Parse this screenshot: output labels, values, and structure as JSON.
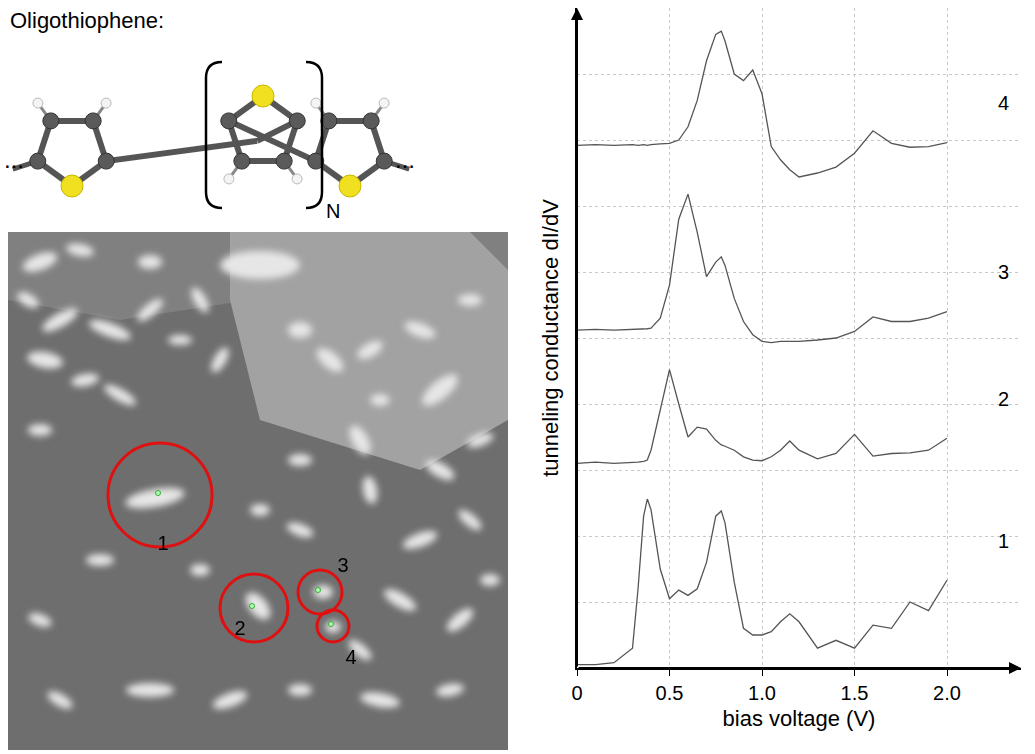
{
  "diagram": {
    "title": "Oligothiophene:",
    "repeat_unit_label": "N",
    "continuation": "..."
  },
  "stm_image": {
    "marked_molecules": [
      "1",
      "2",
      "3",
      "4"
    ]
  },
  "chart_data": {
    "type": "line",
    "x_label": "bias voltage (V)",
    "y_label": "tunneling conductance dI/dV",
    "xlim": [
      0,
      2.4
    ],
    "ylim": [
      0,
      10
    ],
    "xticks": [
      0,
      0.5,
      {
        "value": 1,
        "label": "1.0"
      },
      1.5,
      {
        "value": 2,
        "label": "2.0"
      }
    ],
    "yticks": [
      0,
      1,
      2,
      3,
      4,
      5,
      6,
      7,
      8,
      9,
      10
    ],
    "grid": true,
    "tick_labels": "x",
    "color": "#555555",
    "x": [
      0,
      0.1,
      0.2,
      0.3,
      0.33,
      0.36,
      0.38,
      0.4,
      0.45,
      0.5,
      0.55,
      0.6,
      0.65,
      0.7,
      0.75,
      0.78,
      0.8,
      0.85,
      0.9,
      0.95,
      1.0,
      1.05,
      1.1,
      1.15,
      1.2,
      1.3,
      1.4,
      1.5,
      1.6,
      1.7,
      1.8,
      1.9,
      2.0
    ],
    "series": [
      {
        "name": "1",
        "values": [
          0.05,
          0.05,
          0.08,
          0.3,
          1.2,
          2.3,
          2.56,
          2.4,
          1.5,
          1.05,
          1.18,
          1.1,
          1.2,
          1.6,
          2.3,
          2.38,
          2.2,
          1.3,
          0.6,
          0.5,
          0.5,
          0.55,
          0.7,
          0.82,
          0.7,
          0.3,
          0.42,
          0.3,
          0.65,
          0.6,
          1.0,
          0.87,
          1.33
        ]
      },
      {
        "name": "2",
        "values": [
          3.1,
          3.12,
          3.1,
          3.11,
          3.12,
          3.13,
          3.15,
          3.3,
          3.9,
          4.52,
          4.0,
          3.5,
          3.65,
          3.62,
          3.45,
          3.38,
          3.36,
          3.3,
          3.2,
          3.15,
          3.14,
          3.2,
          3.3,
          3.44,
          3.3,
          3.17,
          3.25,
          3.54,
          3.21,
          3.25,
          3.26,
          3.3,
          3.48
        ]
      },
      {
        "name": "3",
        "values": [
          5.12,
          5.13,
          5.12,
          5.13,
          5.13,
          5.14,
          5.14,
          5.15,
          5.3,
          5.8,
          6.8,
          7.18,
          6.6,
          5.93,
          6.15,
          6.23,
          6.1,
          5.6,
          5.25,
          5.05,
          4.95,
          4.93,
          4.95,
          4.95,
          4.95,
          4.97,
          5.0,
          5.1,
          5.32,
          5.25,
          5.25,
          5.3,
          5.4
        ]
      },
      {
        "name": "4",
        "values": [
          7.92,
          7.93,
          7.92,
          7.93,
          7.92,
          7.93,
          7.92,
          7.93,
          7.94,
          7.95,
          8.0,
          8.2,
          8.6,
          9.2,
          9.6,
          9.65,
          9.5,
          9.0,
          8.9,
          9.06,
          8.7,
          7.9,
          7.7,
          7.55,
          7.44,
          7.5,
          7.59,
          7.8,
          8.14,
          7.95,
          7.89,
          7.9,
          7.96
        ]
      }
    ]
  }
}
